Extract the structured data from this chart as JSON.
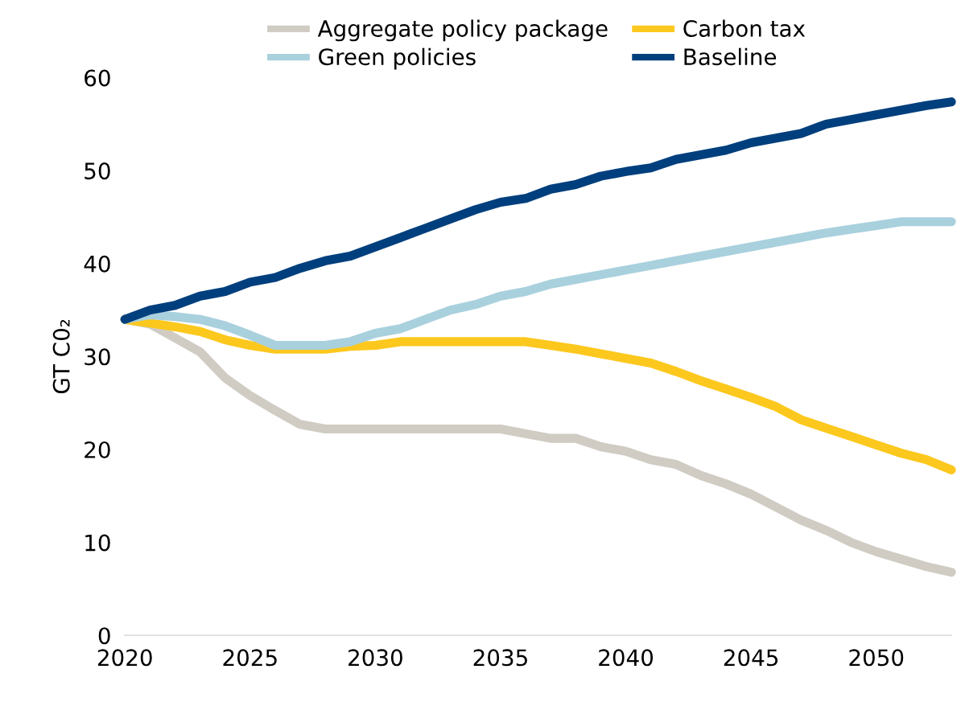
{
  "chart_data": {
    "type": "line",
    "ylabel": "GT C0₂",
    "x": [
      2020,
      2021,
      2022,
      2023,
      2024,
      2025,
      2026,
      2027,
      2028,
      2029,
      2030,
      2031,
      2032,
      2033,
      2034,
      2035,
      2036,
      2037,
      2038,
      2039,
      2040,
      2041,
      2042,
      2043,
      2044,
      2045,
      2046,
      2047,
      2048,
      2049,
      2050,
      2051,
      2052,
      2053
    ],
    "series": [
      {
        "name": "Aggregate policy package",
        "color": "#d0ccc4",
        "values": [
          34,
          33.5,
          32,
          30.5,
          27.7,
          25.8,
          24.2,
          22.7,
          22.2,
          22.2,
          22.2,
          22.2,
          22.2,
          22.2,
          22.2,
          22.2,
          21.7,
          21.2,
          21.2,
          20.3,
          19.8,
          18.9,
          18.4,
          17.2,
          16.3,
          15.2,
          13.8,
          12.4,
          11.3,
          10,
          9,
          8.2,
          7.4,
          6.8
        ]
      },
      {
        "name": "Carbon tax",
        "color": "#fcc81e",
        "values": [
          34,
          33.6,
          33.2,
          32.7,
          31.8,
          31.2,
          30.8,
          30.8,
          30.8,
          31.1,
          31.2,
          31.6,
          31.6,
          31.6,
          31.6,
          31.6,
          31.6,
          31.2,
          30.8,
          30.3,
          29.8,
          29.3,
          28.4,
          27.4,
          26.5,
          25.6,
          24.6,
          23.2,
          22.3,
          21.4,
          20.5,
          19.6,
          18.9,
          17.8
        ]
      },
      {
        "name": "Green policies",
        "color": "#a9d0dd",
        "values": [
          34,
          34.5,
          34.3,
          34,
          33.3,
          32.3,
          31.2,
          31.2,
          31.2,
          31.6,
          32.5,
          33,
          34,
          35,
          35.6,
          36.5,
          37,
          37.8,
          38.3,
          38.8,
          39.3,
          39.8,
          40.3,
          40.8,
          41.3,
          41.8,
          42.3,
          42.8,
          43.3,
          43.7,
          44.1,
          44.5,
          44.5,
          44.5
        ]
      },
      {
        "name": "Baseline",
        "color": "#003f7d",
        "values": [
          34,
          35,
          35.5,
          36.5,
          37,
          38,
          38.5,
          39.5,
          40.3,
          40.8,
          41.8,
          42.8,
          43.8,
          44.8,
          45.8,
          46.6,
          47,
          48,
          48.5,
          49.4,
          49.9,
          50.3,
          51.2,
          51.7,
          52.2,
          53,
          53.5,
          54,
          55,
          55.5,
          56,
          56.5,
          57,
          57.4
        ]
      }
    ],
    "xlim": [
      2020,
      2053
    ],
    "xticks": [
      2020,
      2025,
      2030,
      2035,
      2040,
      2045,
      2050
    ],
    "ylim": [
      0,
      60
    ],
    "yticks": [
      0,
      10,
      20,
      30,
      40,
      50,
      60
    ],
    "grid": false,
    "legend": "top",
    "marker": "none",
    "line_style": "solid"
  }
}
